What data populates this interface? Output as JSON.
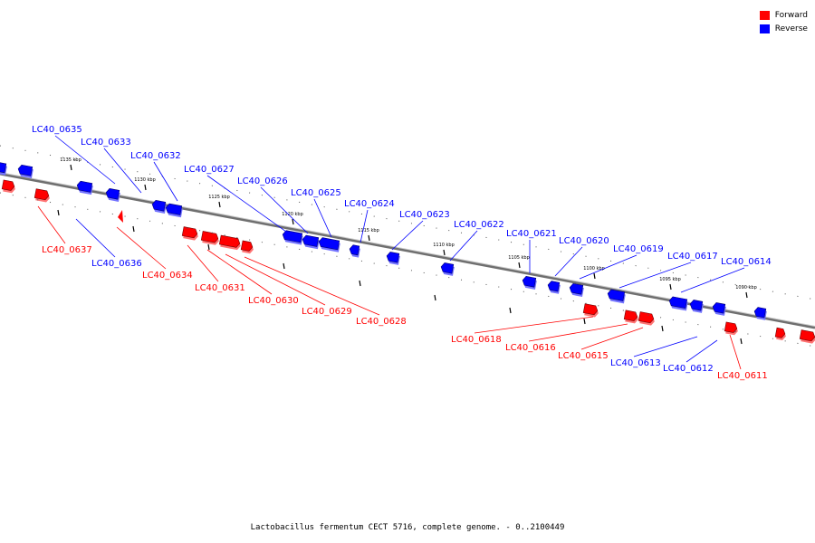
{
  "colors": {
    "forward": "#ff0000",
    "reverse": "#0000ff",
    "backbone": "#888888",
    "tick": "#000000"
  },
  "legend": [
    {
      "name": "Forward",
      "color": "#ff0000"
    },
    {
      "name": "Reverse",
      "color": "#0000ff"
    }
  ],
  "caption": "Lactobacillus fermentum CECT 5716, complete genome. - 0..2100449",
  "ticks": [
    "1135 kbp",
    "1130 kbp",
    "1125 kbp",
    "1120 kbp",
    "1115 kbp",
    "1110 kbp",
    "1105 kbp",
    "1100 kbp",
    "1095 kbp",
    "1090 kbp"
  ],
  "genes_reverse": [
    "LC40_0635",
    "LC40_0633",
    "LC40_0632",
    "LC40_0627",
    "LC40_0626",
    "LC40_0625",
    "LC40_0624",
    "LC40_0623",
    "LC40_0622",
    "LC40_0621",
    "LC40_0620",
    "LC40_0619",
    "LC40_0617",
    "LC40_0614",
    "LC40_0636",
    "LC40_0613",
    "LC40_0612"
  ],
  "genes_forward": [
    "LC40_0637",
    "LC40_0634",
    "LC40_0631",
    "LC40_0630",
    "LC40_0629",
    "LC40_0628",
    "LC40_0618",
    "LC40_0616",
    "LC40_0615",
    "LC40_0611"
  ]
}
